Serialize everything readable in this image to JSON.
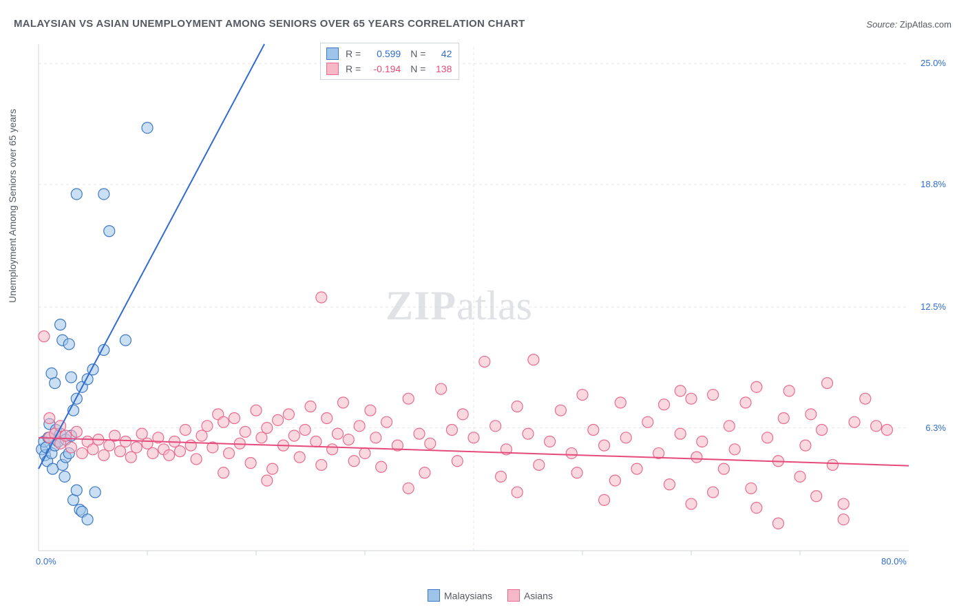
{
  "title": "MALAYSIAN VS ASIAN UNEMPLOYMENT AMONG SENIORS OVER 65 YEARS CORRELATION CHART",
  "source_prefix": "Source:",
  "source_name": "ZipAtlas.com",
  "y_axis_label": "Unemployment Among Seniors over 65 years",
  "watermark_a": "ZIP",
  "watermark_b": "atlas",
  "chart": {
    "type": "scatter",
    "xlim": [
      0,
      80
    ],
    "ylim": [
      0,
      26
    ],
    "x_ticks_minor": [
      10,
      20,
      30,
      50,
      60,
      70
    ],
    "x_tick_labels": [
      {
        "v": 0,
        "label": "0.0%"
      },
      {
        "v": 80,
        "label": "80.0%"
      }
    ],
    "y_tick_labels": [
      {
        "v": 6.3,
        "label": "6.3%"
      },
      {
        "v": 12.5,
        "label": "12.5%"
      },
      {
        "v": 18.8,
        "label": "18.8%"
      },
      {
        "v": 25.0,
        "label": "25.0%"
      }
    ],
    "y_grid": [
      6.3,
      12.5,
      18.8,
      25.0
    ],
    "x_grid": [
      40
    ],
    "background_color": "#ffffff",
    "grid_color": "#e3e6ea",
    "axis_color": "#cfd4da",
    "marker_radius": 8,
    "marker_stroke_width": 1.2,
    "series": [
      {
        "name": "Malaysians",
        "fill": "#9fc4ea",
        "stroke": "#3b78c4",
        "fill_opacity": 0.55,
        "regression": {
          "slope": 1.05,
          "intercept": 4.2,
          "color": "#2f6bd0",
          "width": 2,
          "dash_after_x": 22
        },
        "stats": {
          "R": "0.599",
          "N": "42",
          "color": "#2f6bd0"
        },
        "points": [
          [
            0.3,
            5.2
          ],
          [
            0.5,
            5.6
          ],
          [
            0.6,
            4.9
          ],
          [
            0.7,
            5.3
          ],
          [
            0.8,
            4.6
          ],
          [
            0.9,
            5.8
          ],
          [
            1.0,
            6.5
          ],
          [
            1.2,
            5.0
          ],
          [
            1.3,
            4.2
          ],
          [
            1.5,
            5.4
          ],
          [
            1.6,
            6.2
          ],
          [
            1.8,
            5.6
          ],
          [
            2.0,
            6.0
          ],
          [
            2.2,
            4.4
          ],
          [
            2.4,
            3.8
          ],
          [
            2.5,
            5.7
          ],
          [
            2.5,
            4.8
          ],
          [
            2.8,
            5.0
          ],
          [
            3.0,
            5.9
          ],
          [
            3.2,
            2.6
          ],
          [
            3.2,
            7.2
          ],
          [
            3.5,
            3.1
          ],
          [
            3.5,
            7.8
          ],
          [
            3.8,
            2.1
          ],
          [
            4.0,
            8.4
          ],
          [
            3.0,
            8.9
          ],
          [
            1.2,
            9.1
          ],
          [
            1.5,
            8.6
          ],
          [
            2.0,
            11.6
          ],
          [
            2.2,
            10.8
          ],
          [
            2.8,
            10.6
          ],
          [
            4.5,
            8.8
          ],
          [
            5.0,
            9.3
          ],
          [
            6.0,
            10.3
          ],
          [
            6.5,
            16.4
          ],
          [
            8.0,
            10.8
          ],
          [
            3.5,
            18.3
          ],
          [
            6.0,
            18.3
          ],
          [
            10.0,
            21.7
          ],
          [
            4.0,
            2.0
          ],
          [
            4.5,
            1.6
          ],
          [
            5.2,
            3.0
          ]
        ]
      },
      {
        "name": "Asians",
        "fill": "#f6b8c6",
        "stroke": "#e96a8c",
        "fill_opacity": 0.55,
        "regression": {
          "slope": -0.018,
          "intercept": 5.8,
          "color": "#e64a7a",
          "width": 2
        },
        "stats": {
          "R": "-0.194",
          "N": "138",
          "color": "#e64a7a"
        },
        "points": [
          [
            1.0,
            5.8
          ],
          [
            1.5,
            6.0
          ],
          [
            2.0,
            5.5
          ],
          [
            2.5,
            5.9
          ],
          [
            3.0,
            5.3
          ],
          [
            3.5,
            6.1
          ],
          [
            4.0,
            5.0
          ],
          [
            4.5,
            5.6
          ],
          [
            5.0,
            5.2
          ],
          [
            5.5,
            5.7
          ],
          [
            6.0,
            4.9
          ],
          [
            6.5,
            5.4
          ],
          [
            7.0,
            5.9
          ],
          [
            7.5,
            5.1
          ],
          [
            8.0,
            5.6
          ],
          [
            8.5,
            4.8
          ],
          [
            9.0,
            5.3
          ],
          [
            9.5,
            6.0
          ],
          [
            10.0,
            5.5
          ],
          [
            10.5,
            5.0
          ],
          [
            11.0,
            5.8
          ],
          [
            11.5,
            5.2
          ],
          [
            12.0,
            4.9
          ],
          [
            12.5,
            5.6
          ],
          [
            13.0,
            5.1
          ],
          [
            13.5,
            6.2
          ],
          [
            14.0,
            5.4
          ],
          [
            14.5,
            4.7
          ],
          [
            15.0,
            5.9
          ],
          [
            15.5,
            6.4
          ],
          [
            16.0,
            5.3
          ],
          [
            16.5,
            7.0
          ],
          [
            17.0,
            6.6
          ],
          [
            17.5,
            5.0
          ],
          [
            18.0,
            6.8
          ],
          [
            18.5,
            5.5
          ],
          [
            19.0,
            6.1
          ],
          [
            19.5,
            4.5
          ],
          [
            20.0,
            7.2
          ],
          [
            20.5,
            5.8
          ],
          [
            21.0,
            6.3
          ],
          [
            21.5,
            4.2
          ],
          [
            22.0,
            6.7
          ],
          [
            22.5,
            5.4
          ],
          [
            23.0,
            7.0
          ],
          [
            23.5,
            5.9
          ],
          [
            24.0,
            4.8
          ],
          [
            24.5,
            6.2
          ],
          [
            25.0,
            7.4
          ],
          [
            25.5,
            5.6
          ],
          [
            26.0,
            4.4
          ],
          [
            26.5,
            6.8
          ],
          [
            27.0,
            5.2
          ],
          [
            27.5,
            6.0
          ],
          [
            28.0,
            7.6
          ],
          [
            28.5,
            5.7
          ],
          [
            29.0,
            4.6
          ],
          [
            29.5,
            6.4
          ],
          [
            30.0,
            5.0
          ],
          [
            30.5,
            7.2
          ],
          [
            31.0,
            5.8
          ],
          [
            31.5,
            4.3
          ],
          [
            32.0,
            6.6
          ],
          [
            33.0,
            5.4
          ],
          [
            34.0,
            7.8
          ],
          [
            35.0,
            6.0
          ],
          [
            35.5,
            4.0
          ],
          [
            36.0,
            5.5
          ],
          [
            37.0,
            8.3
          ],
          [
            38.0,
            6.2
          ],
          [
            38.5,
            4.6
          ],
          [
            39.0,
            7.0
          ],
          [
            40.0,
            5.8
          ],
          [
            41.0,
            9.7
          ],
          [
            42.0,
            6.4
          ],
          [
            42.5,
            3.8
          ],
          [
            43.0,
            5.2
          ],
          [
            44.0,
            7.4
          ],
          [
            45.0,
            6.0
          ],
          [
            45.5,
            9.8
          ],
          [
            46.0,
            4.4
          ],
          [
            47.0,
            5.6
          ],
          [
            48.0,
            7.2
          ],
          [
            49.0,
            5.0
          ],
          [
            49.5,
            4.0
          ],
          [
            50.0,
            8.0
          ],
          [
            51.0,
            6.2
          ],
          [
            52.0,
            5.4
          ],
          [
            53.0,
            3.6
          ],
          [
            53.5,
            7.6
          ],
          [
            54.0,
            5.8
          ],
          [
            55.0,
            4.2
          ],
          [
            56.0,
            6.6
          ],
          [
            57.0,
            5.0
          ],
          [
            57.5,
            7.5
          ],
          [
            58.0,
            3.4
          ],
          [
            59.0,
            6.0
          ],
          [
            60.0,
            7.8
          ],
          [
            60.5,
            4.8
          ],
          [
            61.0,
            5.6
          ],
          [
            62.0,
            8.0
          ],
          [
            63.0,
            4.2
          ],
          [
            63.5,
            6.4
          ],
          [
            64.0,
            5.2
          ],
          [
            65.0,
            7.6
          ],
          [
            65.5,
            3.2
          ],
          [
            66.0,
            8.4
          ],
          [
            67.0,
            5.8
          ],
          [
            68.0,
            4.6
          ],
          [
            68.5,
            6.8
          ],
          [
            69.0,
            8.2
          ],
          [
            70.0,
            3.8
          ],
          [
            70.5,
            5.4
          ],
          [
            71.0,
            7.0
          ],
          [
            71.5,
            2.8
          ],
          [
            72.0,
            6.2
          ],
          [
            72.5,
            8.6
          ],
          [
            73.0,
            4.4
          ],
          [
            74.0,
            2.4
          ],
          [
            75.0,
            6.6
          ],
          [
            76.0,
            7.8
          ],
          [
            77.0,
            6.4
          ],
          [
            78.0,
            6.2
          ],
          [
            17.0,
            4.0
          ],
          [
            21.0,
            3.6
          ],
          [
            26.0,
            13.0
          ],
          [
            0.5,
            11.0
          ],
          [
            1.0,
            6.8
          ],
          [
            2.0,
            6.4
          ],
          [
            34.0,
            3.2
          ],
          [
            44.0,
            3.0
          ],
          [
            52.0,
            2.6
          ],
          [
            60.0,
            2.4
          ],
          [
            66.0,
            2.2
          ],
          [
            74.0,
            1.6
          ],
          [
            68.0,
            1.4
          ],
          [
            59.0,
            8.2
          ],
          [
            62.0,
            3.0
          ]
        ]
      }
    ]
  },
  "legend": {
    "series1_label": "Malaysians",
    "series2_label": "Asians"
  },
  "statsbox": {
    "r_label": "R =",
    "n_label": "N ="
  }
}
